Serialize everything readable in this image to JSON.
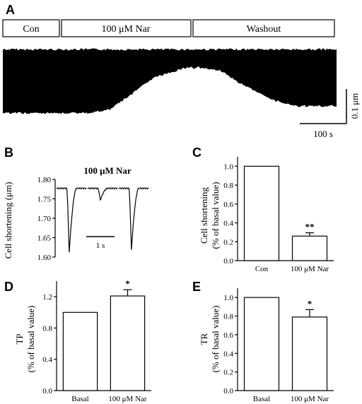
{
  "panels": {
    "A": {
      "letter": "A",
      "segments": [
        "Con",
        "100 μM Nar",
        "Washout"
      ],
      "scale_y_label": "0.1 μm",
      "scale_x_label": "100 s"
    },
    "B": {
      "letter": "B",
      "title": "100 μM Nar",
      "ylabel": "Cell shortening  (μm)",
      "yticks": [
        "1.80",
        "1.75",
        "1.70",
        "1.65",
        "1.60"
      ],
      "scale_label": "1 s"
    },
    "C": {
      "letter": "C",
      "ylabel": [
        "Cell shortening",
        "(% of basal value)"
      ],
      "yticks": [
        "1.0",
        "0.8",
        "0.6",
        "0.4",
        "0.2",
        "0.0"
      ],
      "categories": [
        "Con",
        "100 μM Nar"
      ],
      "sig": "**"
    },
    "D": {
      "letter": "D",
      "ylabel": [
        "TP",
        "(% of basal value)"
      ],
      "yticks": [
        "1.2",
        "0.8",
        "0.4",
        "0.0"
      ],
      "categories": [
        "Basal",
        "100 μM Nar"
      ],
      "sig": "*"
    },
    "E": {
      "letter": "E",
      "ylabel": [
        "TR",
        "(% of basal value)"
      ],
      "yticks": [
        "1.0",
        "0.8",
        "0.6",
        "0.4",
        "0.2",
        "0.0"
      ],
      "categories": [
        "Basal",
        "100 μM Nar"
      ],
      "sig": "*"
    }
  },
  "chart_data": [
    {
      "id": "A",
      "type": "area",
      "note": "Continuous cell shortening trace (envelope), relative units",
      "series": [
        {
          "name": "",
          "x": [
            0,
            0.05,
            0.15,
            0.25,
            0.32,
            0.38,
            0.45,
            0.55,
            0.6,
            0.65,
            0.72,
            0.8,
            0.88,
            1.0
          ],
          "values": [
            0.95,
            0.95,
            0.95,
            0.95,
            0.9,
            0.7,
            0.45,
            0.3,
            0.3,
            0.34,
            0.55,
            0.75,
            0.85,
            0.85
          ]
        }
      ]
    },
    {
      "id": "B",
      "type": "line",
      "title": "100 μM Nar",
      "ylabel": "Cell shortening  (μm)",
      "ylim": [
        1.6,
        1.8
      ],
      "beats": [
        {
          "baseline": 1.777,
          "min": 1.605
        },
        {
          "baseline": 1.777,
          "min": 1.745
        },
        {
          "baseline": 1.777,
          "min": 1.612
        }
      ]
    },
    {
      "id": "C",
      "type": "bar",
      "categories": [
        "Con",
        "100 μM Nar"
      ],
      "values": [
        1.0,
        0.26
      ],
      "errors": [
        0,
        0.035
      ],
      "ylim": [
        0,
        1.1
      ],
      "ylabel": "Cell shortening (% of basal value)"
    },
    {
      "id": "D",
      "type": "bar",
      "categories": [
        "Basal",
        "100 μM Nar"
      ],
      "values": [
        1.0,
        1.21
      ],
      "errors": [
        0,
        0.08
      ],
      "ylim": [
        0,
        1.4
      ],
      "ylabel": "TP (% of basal value)"
    },
    {
      "id": "E",
      "type": "bar",
      "categories": [
        "Basal",
        "100 μM Nar"
      ],
      "values": [
        1.0,
        0.79
      ],
      "errors": [
        0,
        0.08
      ],
      "ylim": [
        0,
        1.1
      ],
      "ylabel": "TR (% of basal value)"
    }
  ]
}
